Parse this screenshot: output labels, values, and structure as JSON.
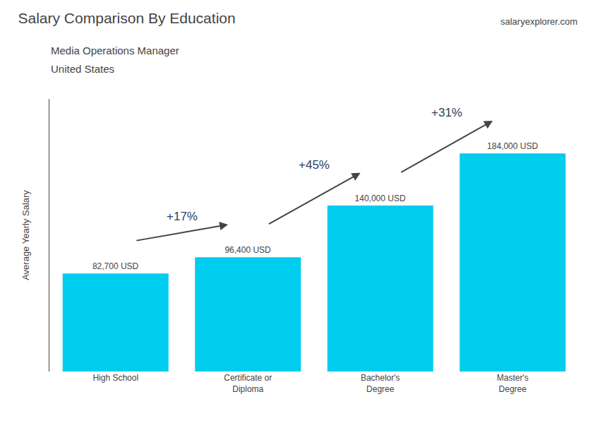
{
  "chart_data": {
    "type": "bar",
    "title": "Salary Comparison By Education",
    "subtitle": [
      "Media Operations Manager",
      "United States"
    ],
    "ylabel": "Average Yearly Salary",
    "categories": [
      "High School",
      "Certificate or\nDiploma",
      "Bachelor's\nDegree",
      "Master's\nDegree"
    ],
    "values": [
      82700,
      96400,
      140000,
      184000
    ],
    "value_labels": [
      "82,700 USD",
      "96,400 USD",
      "140,000 USD",
      "184,000 USD"
    ],
    "data_labels": true,
    "color": "#00ccee",
    "ylim": [
      0,
      230000
    ],
    "tick_labels": "x",
    "grid": false,
    "annotations": [
      {
        "text": "+17%",
        "from": "High School",
        "to": "Certificate or\nDiploma"
      },
      {
        "text": "+45%",
        "from": "Certificate or\nDiploma",
        "to": "Bachelor's\nDegree"
      },
      {
        "text": "+31%",
        "from": "Bachelor's\nDegree",
        "to": "Master's\nDegree"
      },
      {
        "text": "salaryexplorer.com"
      }
    ]
  }
}
